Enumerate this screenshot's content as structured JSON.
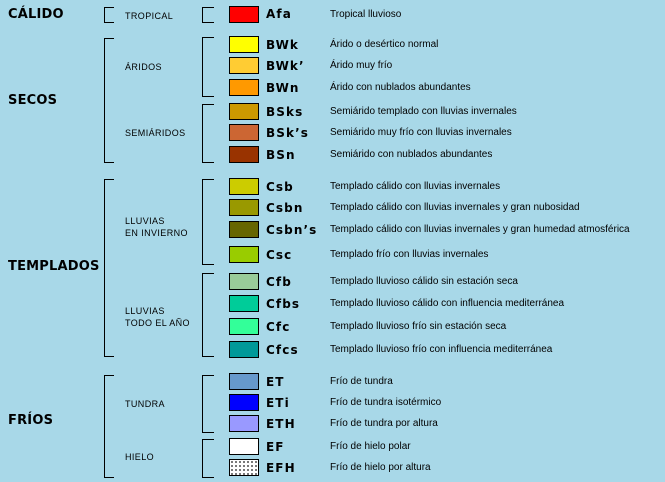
{
  "groups": [
    "CÁLIDO",
    "SECOS",
    "TEMPLADOS",
    "FRÍOS"
  ],
  "subgroups": {
    "tropical": "TROPICAL",
    "aridos": "ÁRIDOS",
    "semiaridos": "SEMIÁRIDOS",
    "lluvias_invierno_1": "LLUVIAS",
    "lluvias_invierno_2": "EN INVIERNO",
    "lluvias_todo_1": "LLUVIAS",
    "lluvias_todo_2": "TODO EL AÑO",
    "tundra": "TUNDRA",
    "hielo": "HIELO"
  },
  "climates": [
    {
      "code": "Afa",
      "color": "#ff0000",
      "desc": "Tropical lluvioso"
    },
    {
      "code": "BWk",
      "color": "#ffff00",
      "desc": "Árido o desértico normal"
    },
    {
      "code": "BWk’",
      "color": "#ffcc33",
      "desc": "Árido muy frío"
    },
    {
      "code": "BWn",
      "color": "#ff9900",
      "desc": "Árido con nublados abundantes"
    },
    {
      "code": "BSks",
      "color": "#cc9900",
      "desc": "Semiárido templado con lluvias invernales"
    },
    {
      "code": "BSk’s",
      "color": "#cc6633",
      "desc": "Semiárido muy frío con lluvias invernales"
    },
    {
      "code": "BSn",
      "color": "#993300",
      "desc": "Semiárido con nublados abundantes"
    },
    {
      "code": "Csb",
      "color": "#cccc00",
      "desc": "Templado cálido con lluvias invernales"
    },
    {
      "code": "Csbn",
      "color": "#999900",
      "desc": "Templado cálido con lluvias invernales y gran nubosidad"
    },
    {
      "code": "Csbn’s",
      "color": "#666600",
      "desc": "Templado cálido con lluvias invernales y gran humedad atmosférica"
    },
    {
      "code": "Csc",
      "color": "#99cc00",
      "desc": "Templado frío con lluvias invernales"
    },
    {
      "code": "Cfb",
      "color": "#99cc99",
      "desc": "Templado lluvioso cálido sin estación seca"
    },
    {
      "code": "Cfbs",
      "color": "#00cc99",
      "desc": "Templado lluvioso cálido con influencia mediterránea"
    },
    {
      "code": "Cfc",
      "color": "#33ff99",
      "desc": "Templado lluvioso frío sin estación seca"
    },
    {
      "code": "Cfcs",
      "color": "#009999",
      "desc": "Templado lluvioso frío con influencia mediterránea"
    },
    {
      "code": "ET",
      "color": "#6699cc",
      "desc": "Frío de  tundra"
    },
    {
      "code": "ETi",
      "color": "#0000ff",
      "desc": "Frío de  tundra isotérmico"
    },
    {
      "code": "ETH",
      "color": "#9999ff",
      "desc": "Frío de  tundra por altura"
    },
    {
      "code": "EF",
      "color": "#ffffff",
      "desc": "Frío de hielo polar"
    },
    {
      "code": "EFH",
      "color": "#ffffff",
      "pattern": "dotted",
      "desc": "Frío de hielo por altura"
    }
  ]
}
